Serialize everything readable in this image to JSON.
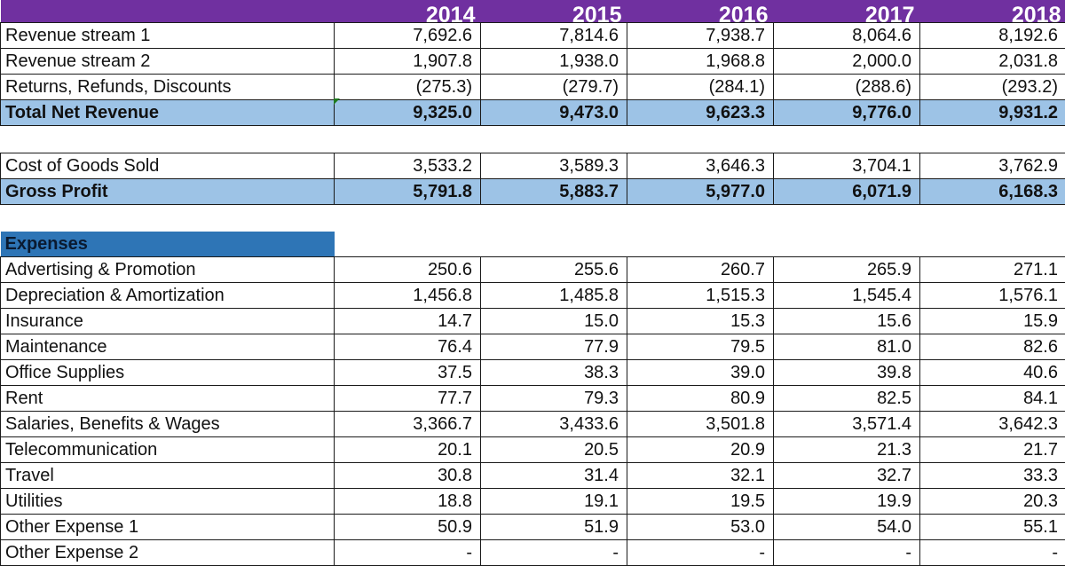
{
  "colors": {
    "header": "#7030A0",
    "total_row": "#9DC3E6",
    "section": "#2E75B6"
  },
  "years": [
    "2014",
    "2015",
    "2016",
    "2017",
    "2018"
  ],
  "revenue": [
    {
      "label": "Revenue stream 1",
      "values": [
        "7,692.6",
        "7,814.6",
        "7,938.7",
        "8,064.6",
        "8,192.6"
      ]
    },
    {
      "label": "Revenue stream 2",
      "values": [
        "1,907.8",
        "1,938.0",
        "1,968.8",
        "2,000.0",
        "2,031.8"
      ]
    },
    {
      "label": "Returns, Refunds, Discounts",
      "values": [
        "(275.3)",
        "(279.7)",
        "(284.1)",
        "(288.6)",
        "(293.2)"
      ]
    }
  ],
  "total_net_revenue": {
    "label": "Total Net Revenue",
    "values": [
      "9,325.0",
      "9,473.0",
      "9,623.3",
      "9,776.0",
      "9,931.2"
    ]
  },
  "cogs": {
    "label": "Cost of Goods Sold",
    "values": [
      "3,533.2",
      "3,589.3",
      "3,646.3",
      "3,704.1",
      "3,762.9"
    ]
  },
  "gross_profit": {
    "label": "Gross Profit",
    "values": [
      "5,791.8",
      "5,883.7",
      "5,977.0",
      "6,071.9",
      "6,168.3"
    ]
  },
  "expenses_label": "Expenses",
  "expenses": [
    {
      "label": "Advertising & Promotion",
      "values": [
        "250.6",
        "255.6",
        "260.7",
        "265.9",
        "271.1"
      ]
    },
    {
      "label": "Depreciation & Amortization",
      "values": [
        "1,456.8",
        "1,485.8",
        "1,515.3",
        "1,545.4",
        "1,576.1"
      ]
    },
    {
      "label": "Insurance",
      "values": [
        "14.7",
        "15.0",
        "15.3",
        "15.6",
        "15.9"
      ]
    },
    {
      "label": "Maintenance",
      "values": [
        "76.4",
        "77.9",
        "79.5",
        "81.0",
        "82.6"
      ]
    },
    {
      "label": "Office Supplies",
      "values": [
        "37.5",
        "38.3",
        "39.0",
        "39.8",
        "40.6"
      ]
    },
    {
      "label": "Rent",
      "values": [
        "77.7",
        "79.3",
        "80.9",
        "82.5",
        "84.1"
      ]
    },
    {
      "label": "Salaries, Benefits & Wages",
      "values": [
        "3,366.7",
        "3,433.6",
        "3,501.8",
        "3,571.4",
        "3,642.3"
      ]
    },
    {
      "label": "Telecommunication",
      "values": [
        "20.1",
        "20.5",
        "20.9",
        "21.3",
        "21.7"
      ]
    },
    {
      "label": "Travel",
      "values": [
        "30.8",
        "31.4",
        "32.1",
        "32.7",
        "33.3"
      ]
    },
    {
      "label": "Utilities",
      "values": [
        "18.8",
        "19.1",
        "19.5",
        "19.9",
        "20.3"
      ]
    },
    {
      "label": "Other Expense 1",
      "values": [
        "50.9",
        "51.9",
        "53.0",
        "54.0",
        "55.1"
      ]
    },
    {
      "label": "Other Expense 2",
      "values": [
        "-",
        "-",
        "-",
        "-",
        "-"
      ]
    }
  ]
}
